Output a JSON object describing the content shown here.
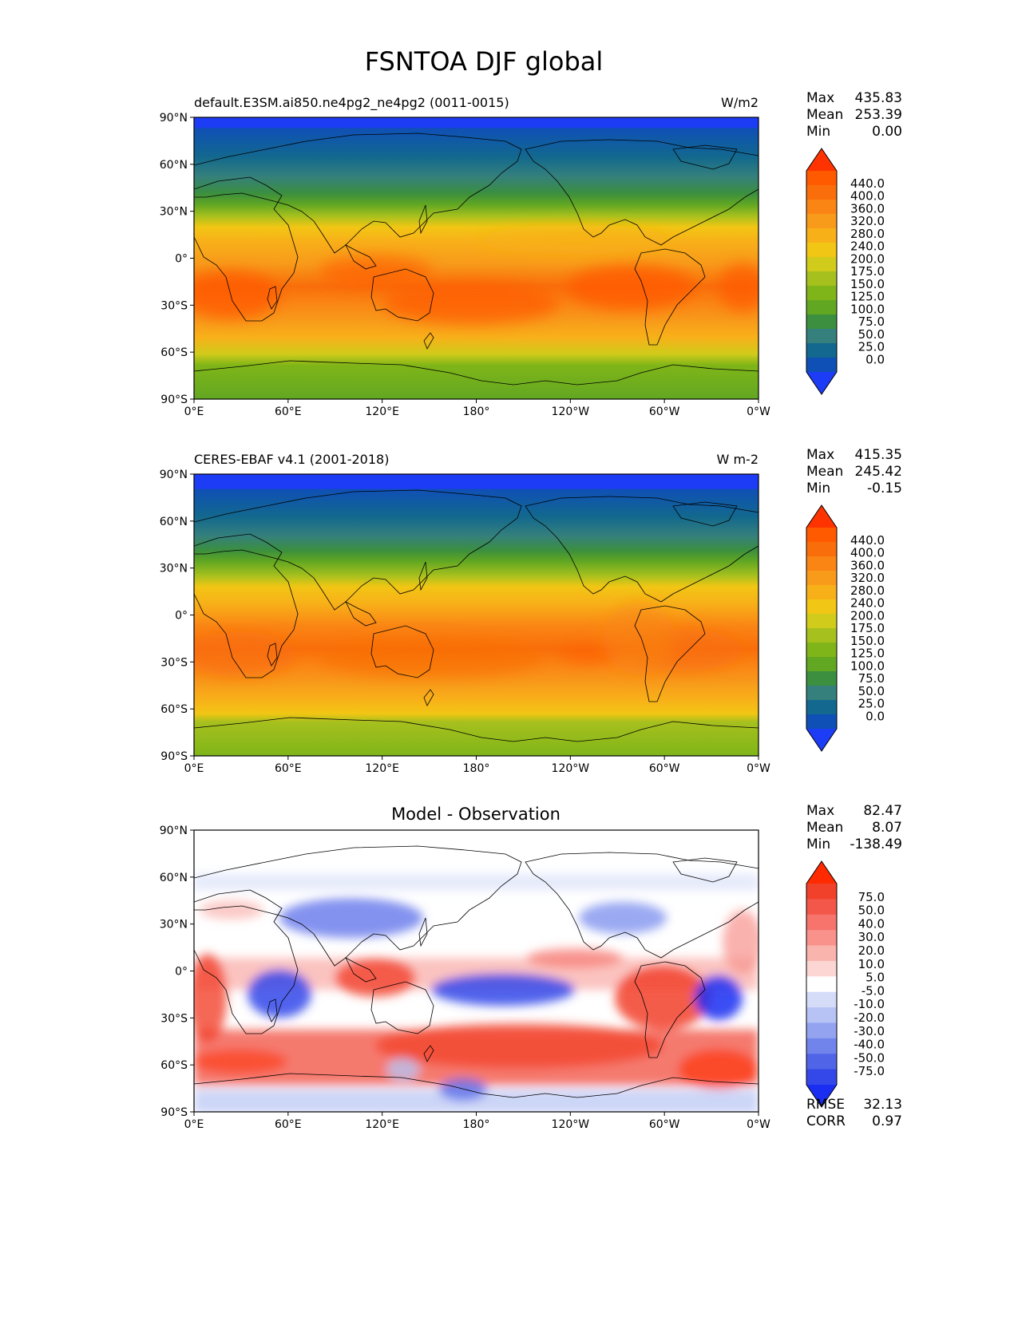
{
  "title": "FSNTOA DJF global",
  "tick_labels": {
    "lat": [
      "90°N",
      "60°N",
      "30°N",
      "0°",
      "30°S",
      "60°S",
      "90°S"
    ],
    "lon": [
      "0°E",
      "60°E",
      "120°E",
      "180°",
      "120°W",
      "60°W",
      "0°W"
    ]
  },
  "panels": [
    {
      "id": "test",
      "left_title": "default.E3SM.ai850.ne4pg2_ne4pg2 (0011-0015)",
      "center_title": "",
      "units": "W/m2",
      "stats": [
        {
          "label": "Max",
          "value": "435.83"
        },
        {
          "label": "Mean",
          "value": "253.39"
        },
        {
          "label": "Min",
          "value": "0.00"
        }
      ],
      "colorbar": {
        "levels": [
          "440.0",
          "400.0",
          "360.0",
          "320.0",
          "280.0",
          "240.0",
          "200.0",
          "175.0",
          "150.0",
          "125.0",
          "100.0",
          "75.0",
          "50.0",
          "25.0",
          "0.0"
        ],
        "colors_top_to_bottom": [
          "#ff3300",
          "#ff5a00",
          "#f96e0a",
          "#fa8514",
          "#f89a1a",
          "#f8b019",
          "#f2c614",
          "#d1cb1b",
          "#a6c01e",
          "#7fb518",
          "#62a722",
          "#3b8f3f",
          "#35807c",
          "#12688e",
          "#0f50b6",
          "#1d3cf5"
        ],
        "extend": "both"
      }
    },
    {
      "id": "reference",
      "left_title": "CERES-EBAF v4.1 (2001-2018)",
      "center_title": "",
      "units": "W m-2",
      "stats": [
        {
          "label": "Max",
          "value": "415.35"
        },
        {
          "label": "Mean",
          "value": "245.42"
        },
        {
          "label": "Min",
          "value": "-0.15"
        }
      ],
      "colorbar": {
        "levels": [
          "440.0",
          "400.0",
          "360.0",
          "320.0",
          "280.0",
          "240.0",
          "200.0",
          "175.0",
          "150.0",
          "125.0",
          "100.0",
          "75.0",
          "50.0",
          "25.0",
          "0.0"
        ],
        "colors_top_to_bottom": [
          "#ff3300",
          "#ff5a00",
          "#f96e0a",
          "#fa8514",
          "#f89a1a",
          "#f8b019",
          "#f2c614",
          "#d1cb1b",
          "#a6c01e",
          "#7fb518",
          "#62a722",
          "#3b8f3f",
          "#35807c",
          "#12688e",
          "#0f50b6",
          "#1d3cf5"
        ],
        "extend": "both"
      }
    },
    {
      "id": "difference",
      "left_title": "",
      "center_title": "Model - Observation",
      "units": "",
      "stats": [
        {
          "label": "Max",
          "value": "82.47"
        },
        {
          "label": "Mean",
          "value": "8.07"
        },
        {
          "label": "Min",
          "value": "-138.49"
        }
      ],
      "colorbar": {
        "levels": [
          "75.0",
          "50.0",
          "40.0",
          "30.0",
          "20.0",
          "10.0",
          "5.0",
          "-5.0",
          "-10.0",
          "-20.0",
          "-30.0",
          "-40.0",
          "-50.0",
          "-75.0"
        ],
        "colors_top_to_bottom": [
          "#ff2a00",
          "#f2412b",
          "#f3574a",
          "#f6746c",
          "#f8928b",
          "#fab4ae",
          "#fcd6d2",
          "#ffffff",
          "#d4dcf8",
          "#b6c3f4",
          "#93a3f0",
          "#7184ec",
          "#5064e8",
          "#3448ea",
          "#1a2ef2"
        ],
        "extend": "both"
      },
      "footer_stats": [
        {
          "label": "RMSE",
          "value": "32.13"
        },
        {
          "label": "CORR",
          "value": "0.97"
        }
      ]
    }
  ]
}
